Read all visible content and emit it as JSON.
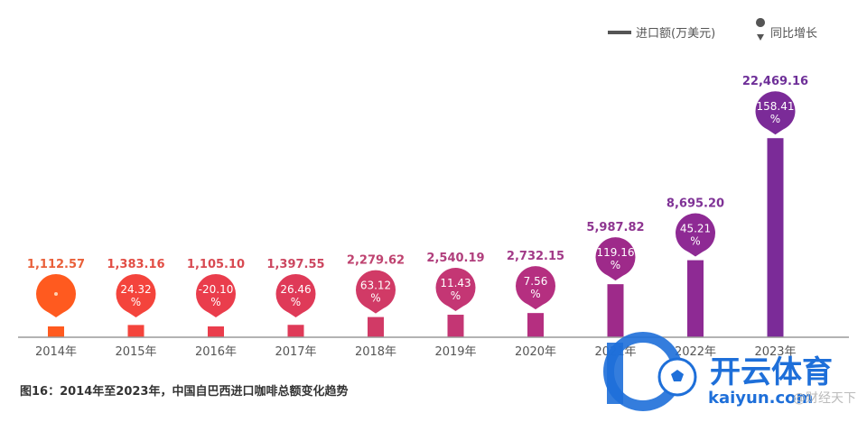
{
  "legend": {
    "bar_label": "进口额(万美元)",
    "growth_label": "同比增长"
  },
  "caption": "图16：2014年至2023年，中国自巴西进口咖啡总额变化趋势",
  "watermark": {
    "brand": "开云体育",
    "domain": "kaiyun.com",
    "source": "@财经天下"
  },
  "chart_data": {
    "type": "bar",
    "categories": [
      "2014年",
      "2015年",
      "2016年",
      "2017年",
      "2018年",
      "2019年",
      "2020年",
      "2021年",
      "2022年",
      "2023年"
    ],
    "series": [
      {
        "name": "进口额(万美元)",
        "values": [
          1112.57,
          1383.16,
          1105.1,
          1397.55,
          2279.62,
          2540.19,
          2732.15,
          5987.82,
          8695.2,
          22469.16
        ],
        "value_labels": [
          "1,112.57",
          "1,383.16",
          "1,105.10",
          "1,397.55",
          "2,279.62",
          "2,540.19",
          "2,732.15",
          "5,987.82",
          "8,695.20",
          "22,469.16"
        ]
      },
      {
        "name": "同比增长",
        "values": [
          null,
          24.32,
          -20.1,
          26.46,
          63.12,
          11.43,
          7.56,
          119.16,
          45.21,
          158.41
        ],
        "value_labels": [
          "",
          "24.32%",
          "-20.10%",
          "26.46%",
          "63.12%",
          "11.43%",
          "7.56%",
          "119.16%",
          "45.21%",
          "158.41%"
        ]
      }
    ],
    "colors": [
      "#ff5a1f",
      "#f4443c",
      "#ea3d4c",
      "#df3a58",
      "#d13a66",
      "#c43674",
      "#b52f80",
      "#9e2a8a",
      "#8e2a94",
      "#7b2b98"
    ],
    "label_colors": [
      "#e9603a",
      "#e24e45",
      "#d84a52",
      "#cc4760",
      "#bf4370",
      "#b03e7c",
      "#a23a88",
      "#8e3590",
      "#7f3296",
      "#6e2f98"
    ],
    "legend_position": "top-right",
    "grid": false
  }
}
